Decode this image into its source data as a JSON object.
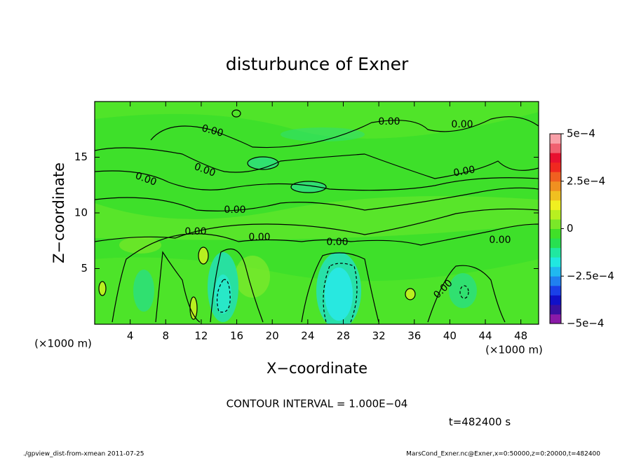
{
  "chart_data": {
    "type": "contour",
    "title": "disturbunce of Exner",
    "x_label": "X−coordinate",
    "y_label": "Z−coordinate",
    "x_unit": "(×1000 m)",
    "y_unit": "(×1000 m)",
    "xlim": [
      0,
      50
    ],
    "ylim": [
      0,
      20
    ],
    "xticks": [
      4,
      8,
      12,
      16,
      20,
      24,
      28,
      32,
      36,
      40,
      44,
      48
    ],
    "yticks": [
      5,
      10,
      15
    ],
    "colorbar_lim": [
      -0.0005,
      0.0005
    ],
    "colorbar_ticks": [
      {
        "value": 0.0005,
        "label": "5e−4"
      },
      {
        "value": 0.00025,
        "label": "2.5e−4"
      },
      0,
      {
        "value": -0.00025,
        "label": "−2.5e−4"
      },
      {
        "value": -0.0005,
        "label": "−5e−4"
      }
    ],
    "colorbar_colors": [
      "#8a1aa8",
      "#3a10a0",
      "#1010c8",
      "#1a40e8",
      "#2080f0",
      "#20b8f0",
      "#20e8e0",
      "#20e8a0",
      "#28e050",
      "#40e028",
      "#7ae828",
      "#b8f020",
      "#f0f020",
      "#f0c020",
      "#f09020",
      "#f06020",
      "#f02820",
      "#e81030",
      "#f06070",
      "#f8a0a8"
    ],
    "contour_labels": [
      "0.00",
      "0.00",
      "0.00",
      "0.00",
      "0.00",
      "0.00",
      "0.00",
      "0.00",
      "0.00",
      "0.00",
      "0.00",
      "0.00"
    ],
    "contour_interval": "CONTOUR INTERVAL = 1.000E−04",
    "time_label": "t=482400 s",
    "footer_left": "./gpview_dist-from-xmean  2011-07-25",
    "footer_right": "MarsCond_Exner.nc@Exner,x=0:50000,z=0:20000,t=482400"
  }
}
